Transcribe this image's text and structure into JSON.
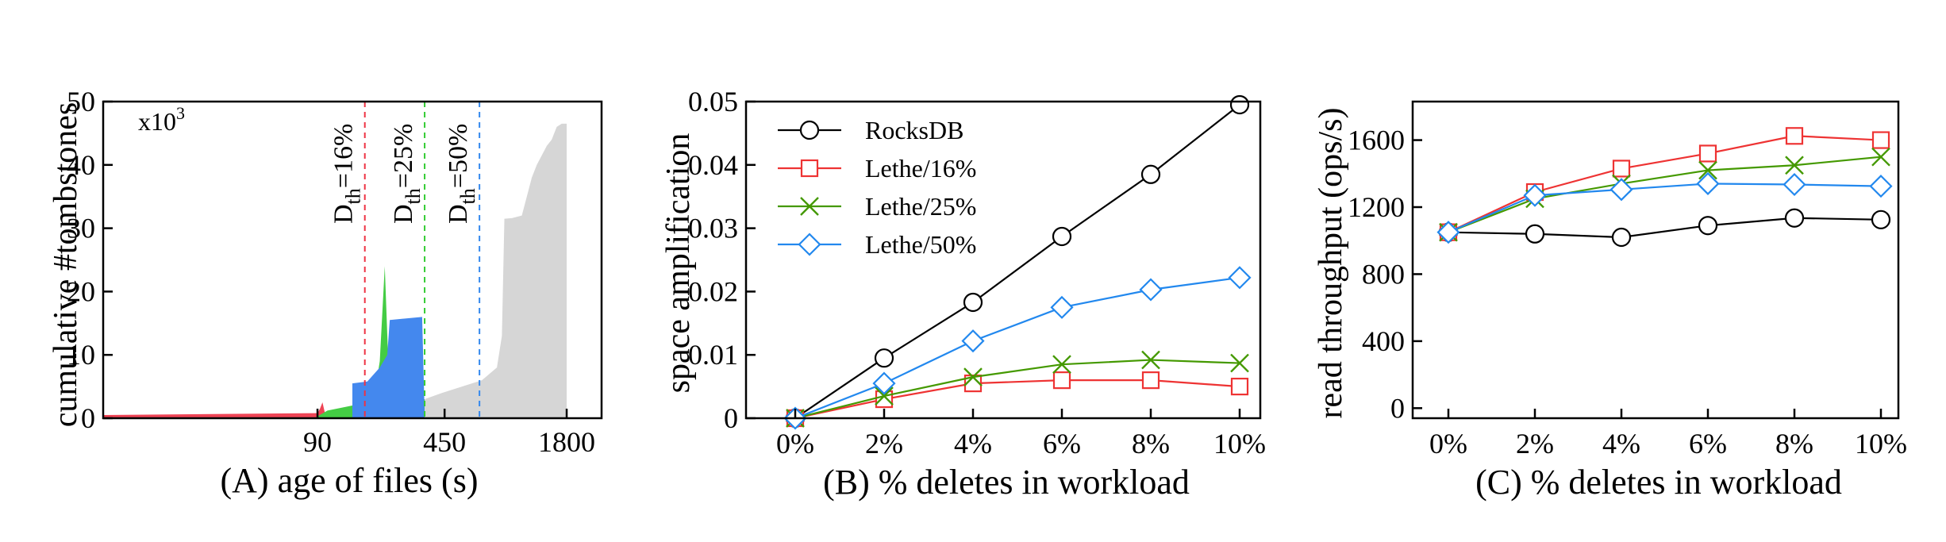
{
  "chart_data": [
    {
      "type": "area",
      "caption": "(A) age of files (s)",
      "ylabel": "cumulative #tombstones",
      "y_multiplier": "x10",
      "y_multiplier_exp": "3",
      "yticks": [
        "0",
        "10",
        "20",
        "30",
        "40",
        "50"
      ],
      "ylim": [
        0,
        50
      ],
      "xticks": [
        {
          "label": "90",
          "pos": 0.43
        },
        {
          "label": "450",
          "pos": 0.685
        },
        {
          "label": "1800",
          "pos": 0.93
        }
      ],
      "thresholds": [
        {
          "label": "D",
          "sub": "th",
          "value": "=16%",
          "color": "#ee3344",
          "pos": 0.525
        },
        {
          "label": "D",
          "sub": "th",
          "value": "=25%",
          "color": "#33cc33",
          "pos": 0.645
        },
        {
          "label": "D",
          "sub": "th",
          "value": "=50%",
          "color": "#3388ee",
          "pos": 0.755
        }
      ],
      "series": [
        {
          "name": "red",
          "color": "#ee4455",
          "points": [
            [
              0,
              0.5
            ],
            [
              0.43,
              0.8
            ],
            [
              0.435,
              1.5
            ],
            [
              0.44,
              2.5
            ],
            [
              0.445,
              0.8
            ],
            [
              0.525,
              0.9
            ]
          ]
        },
        {
          "name": "green",
          "color": "#44cc44",
          "points": [
            [
              0.43,
              0.3
            ],
            [
              0.45,
              1.2
            ],
            [
              0.5,
              2.0
            ],
            [
              0.53,
              2.5
            ],
            [
              0.545,
              4.0
            ],
            [
              0.555,
              9
            ],
            [
              0.565,
              24
            ],
            [
              0.575,
              2.5
            ],
            [
              0.645,
              3
            ]
          ]
        },
        {
          "name": "blue",
          "color": "#4488ee",
          "points": [
            [
              0.5,
              5.5
            ],
            [
              0.53,
              5.8
            ],
            [
              0.555,
              8
            ],
            [
              0.57,
              10
            ],
            [
              0.575,
              15.5
            ],
            [
              0.64,
              16
            ],
            [
              0.645,
              0.5
            ],
            [
              0.755,
              0.5
            ]
          ]
        },
        {
          "name": "gray",
          "color": "#d6d6d6",
          "points": [
            [
              0.645,
              3
            ],
            [
              0.68,
              4
            ],
            [
              0.72,
              5
            ],
            [
              0.76,
              6
            ],
            [
              0.79,
              8
            ],
            [
              0.8,
              13
            ],
            [
              0.805,
              31.5
            ],
            [
              0.82,
              31.6
            ],
            [
              0.84,
              32
            ],
            [
              0.85,
              35
            ],
            [
              0.86,
              38
            ],
            [
              0.87,
              40
            ],
            [
              0.89,
              43
            ],
            [
              0.9,
              44
            ],
            [
              0.91,
              46
            ],
            [
              0.92,
              46.5
            ],
            [
              0.93,
              46.5
            ]
          ]
        }
      ]
    },
    {
      "type": "line",
      "caption": "(B) % deletes in workload",
      "ylabel": "space amplification",
      "categories": [
        "0%",
        "2%",
        "4%",
        "6%",
        "8%",
        "10%"
      ],
      "x": [
        0,
        2,
        4,
        6,
        8,
        10
      ],
      "ylim": [
        0,
        0.05
      ],
      "yticks": [
        {
          "label": "0",
          "value": 0
        },
        {
          "label": "0.01",
          "value": 0.01
        },
        {
          "label": "0.02",
          "value": 0.02
        },
        {
          "label": "0.03",
          "value": 0.03
        },
        {
          "label": "0.04",
          "value": 0.04
        },
        {
          "label": "0.05",
          "value": 0.05
        }
      ],
      "legend": "top-left",
      "series": [
        {
          "name": "RocksDB",
          "marker": "circle",
          "color": "#000000",
          "values": [
            0,
            0.0095,
            0.0183,
            0.0287,
            0.0385,
            0.0495
          ]
        },
        {
          "name": "Lethe/16%",
          "marker": "square",
          "color": "#ee3333",
          "values": [
            0,
            0.003,
            0.0055,
            0.006,
            0.006,
            0.005
          ]
        },
        {
          "name": "Lethe/25%",
          "marker": "x",
          "color": "#449900",
          "values": [
            0,
            0.0035,
            0.0065,
            0.0085,
            0.0092,
            0.0087
          ]
        },
        {
          "name": "Lethe/50%",
          "marker": "diamond",
          "color": "#2288ee",
          "values": [
            0,
            0.0055,
            0.0122,
            0.0175,
            0.0203,
            0.0222
          ]
        }
      ]
    },
    {
      "type": "line",
      "caption": "(C) % deletes in workload",
      "ylabel": "read throughput (ops/s)",
      "categories": [
        "0%",
        "2%",
        "4%",
        "6%",
        "8%",
        "10%"
      ],
      "x": [
        0,
        2,
        4,
        6,
        8,
        10
      ],
      "ylim": [
        -60,
        1830
      ],
      "yticks": [
        {
          "label": "0",
          "value": 0
        },
        {
          "label": "400",
          "value": 400
        },
        {
          "label": "800",
          "value": 800
        },
        {
          "label": "1200",
          "value": 1200
        },
        {
          "label": "1600",
          "value": 1600
        }
      ],
      "series": [
        {
          "name": "RocksDB",
          "marker": "circle",
          "color": "#000000",
          "values": [
            1050,
            1040,
            1020,
            1090,
            1135,
            1125
          ]
        },
        {
          "name": "Lethe/16%",
          "marker": "square",
          "color": "#ee3333",
          "values": [
            1050,
            1290,
            1430,
            1520,
            1625,
            1600
          ]
        },
        {
          "name": "Lethe/25%",
          "marker": "x",
          "color": "#449900",
          "values": [
            1050,
            1250,
            1340,
            1420,
            1450,
            1500
          ]
        },
        {
          "name": "Lethe/50%",
          "marker": "diamond",
          "color": "#2288ee",
          "values": [
            1050,
            1270,
            1305,
            1340,
            1335,
            1325
          ]
        }
      ]
    }
  ]
}
